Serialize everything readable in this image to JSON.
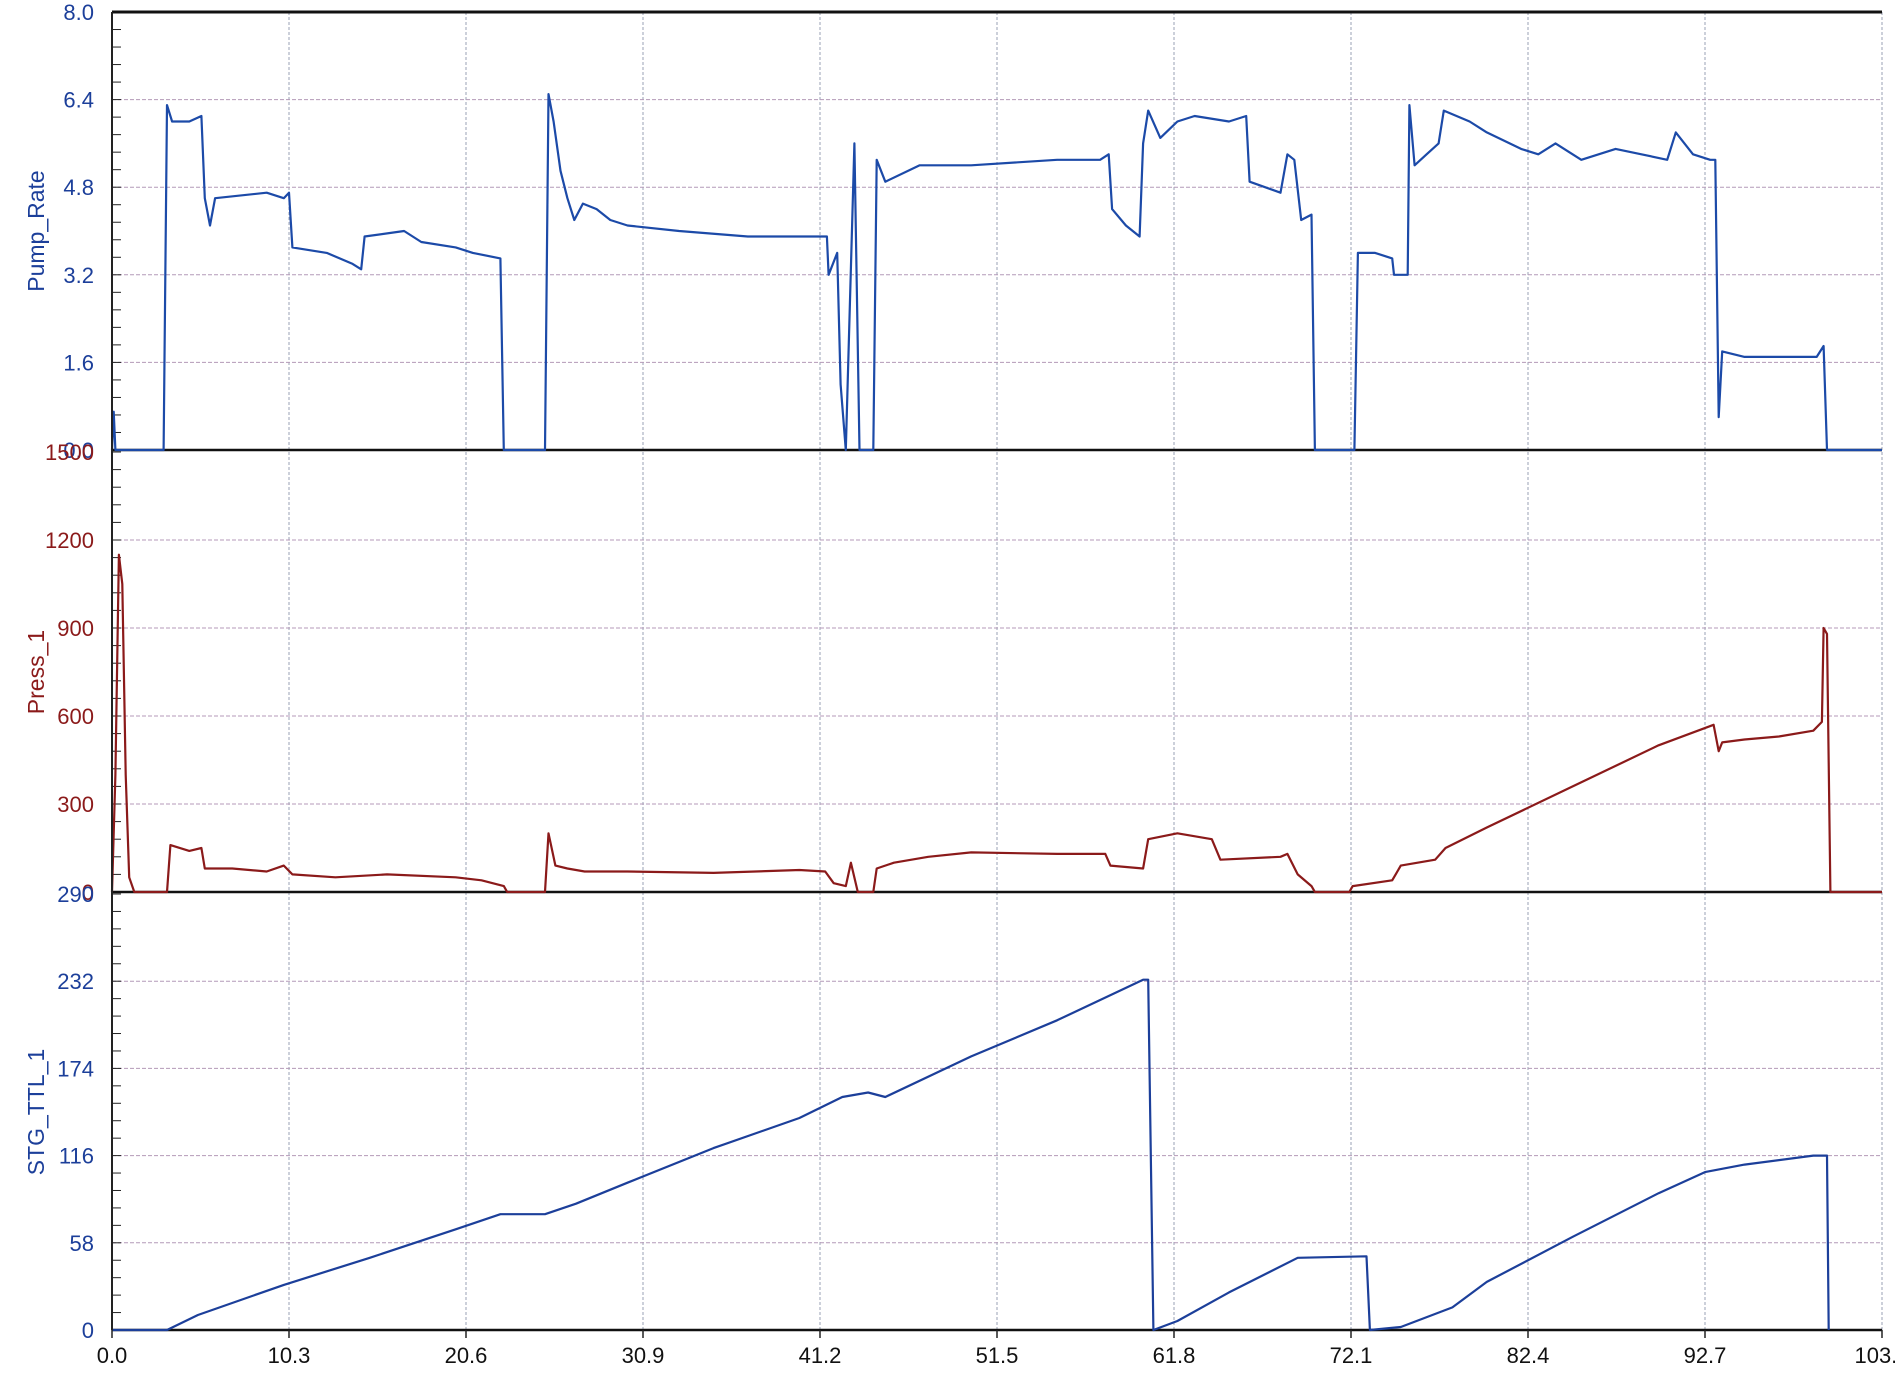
{
  "chart_data": {
    "type": "line",
    "x_axis": {
      "ticks": [
        0.0,
        10.3,
        20.6,
        30.9,
        41.2,
        51.5,
        61.8,
        72.1,
        82.4,
        92.7,
        103.0
      ],
      "tick_labels": [
        "0.0",
        "10.3",
        "20.6",
        "30.9",
        "41.2",
        "51.5",
        "61.8",
        "72.1",
        "82.4",
        "92.7",
        "103.0"
      ],
      "range": [
        0.0,
        103.0
      ]
    },
    "grid": true,
    "panels": [
      {
        "ylabel": "Pump_Rate",
        "color": "#1c4aa8",
        "label_color": "#1c3f9a",
        "ylim": [
          0.0,
          8.0
        ],
        "ticks": [
          0.0,
          1.6,
          3.2,
          4.8,
          6.4,
          8.0
        ],
        "tick_labels": [
          "0.0",
          "1.6",
          "3.2",
          "4.8",
          "6.4",
          "8.0"
        ],
        "points": [
          [
            0.0,
            0.0
          ],
          [
            0.1,
            0.7
          ],
          [
            0.2,
            0.0
          ],
          [
            3.0,
            0.0
          ],
          [
            3.2,
            6.3
          ],
          [
            3.5,
            6.0
          ],
          [
            4.5,
            6.0
          ],
          [
            5.2,
            6.1
          ],
          [
            5.4,
            4.6
          ],
          [
            5.7,
            4.1
          ],
          [
            6.0,
            4.6
          ],
          [
            9.0,
            4.7
          ],
          [
            10.0,
            4.6
          ],
          [
            10.3,
            4.7
          ],
          [
            10.5,
            3.7
          ],
          [
            12.5,
            3.6
          ],
          [
            14.0,
            3.4
          ],
          [
            14.5,
            3.3
          ],
          [
            14.7,
            3.9
          ],
          [
            17.0,
            4.0
          ],
          [
            18.0,
            3.8
          ],
          [
            20.0,
            3.7
          ],
          [
            21.0,
            3.6
          ],
          [
            22.6,
            3.5
          ],
          [
            22.8,
            0.0
          ],
          [
            25.2,
            0.0
          ],
          [
            25.4,
            6.5
          ],
          [
            25.7,
            6.0
          ],
          [
            26.1,
            5.1
          ],
          [
            26.5,
            4.6
          ],
          [
            26.9,
            4.2
          ],
          [
            27.4,
            4.5
          ],
          [
            28.2,
            4.4
          ],
          [
            29.0,
            4.2
          ],
          [
            30.0,
            4.1
          ],
          [
            33.0,
            4.0
          ],
          [
            37.0,
            3.9
          ],
          [
            40.0,
            3.9
          ],
          [
            41.6,
            3.9
          ],
          [
            41.7,
            3.2
          ],
          [
            42.2,
            3.6
          ],
          [
            42.4,
            1.2
          ],
          [
            42.7,
            0.0
          ],
          [
            43.2,
            5.6
          ],
          [
            43.5,
            0.0
          ],
          [
            44.3,
            0.0
          ],
          [
            44.5,
            5.3
          ],
          [
            45.0,
            4.9
          ],
          [
            47.0,
            5.2
          ],
          [
            50.0,
            5.2
          ],
          [
            55.0,
            5.3
          ],
          [
            57.5,
            5.3
          ],
          [
            58.0,
            5.4
          ],
          [
            58.2,
            4.4
          ],
          [
            59.0,
            4.1
          ],
          [
            59.8,
            3.9
          ],
          [
            60.0,
            5.6
          ],
          [
            60.3,
            6.2
          ],
          [
            61.0,
            5.7
          ],
          [
            62.0,
            6.0
          ],
          [
            63.0,
            6.1
          ],
          [
            65.0,
            6.0
          ],
          [
            66.0,
            6.1
          ],
          [
            66.2,
            4.9
          ],
          [
            68.0,
            4.7
          ],
          [
            68.4,
            5.4
          ],
          [
            68.8,
            5.3
          ],
          [
            69.2,
            4.2
          ],
          [
            69.8,
            4.3
          ],
          [
            70.0,
            0.0
          ],
          [
            72.3,
            0.0
          ],
          [
            72.5,
            3.6
          ],
          [
            73.5,
            3.6
          ],
          [
            74.5,
            3.5
          ],
          [
            74.6,
            3.2
          ],
          [
            75.4,
            3.2
          ],
          [
            75.5,
            6.3
          ],
          [
            75.8,
            5.2
          ],
          [
            76.5,
            5.4
          ],
          [
            77.2,
            5.6
          ],
          [
            77.5,
            6.2
          ],
          [
            79.0,
            6.0
          ],
          [
            80.0,
            5.8
          ],
          [
            82.0,
            5.5
          ],
          [
            83.0,
            5.4
          ],
          [
            84.0,
            5.6
          ],
          [
            85.5,
            5.3
          ],
          [
            87.5,
            5.5
          ],
          [
            89.0,
            5.4
          ],
          [
            90.5,
            5.3
          ],
          [
            91.0,
            5.8
          ],
          [
            92.0,
            5.4
          ],
          [
            93.0,
            5.3
          ],
          [
            93.3,
            5.3
          ],
          [
            93.5,
            0.6
          ],
          [
            93.7,
            1.8
          ],
          [
            95.0,
            1.7
          ],
          [
            98.0,
            1.7
          ],
          [
            99.2,
            1.7
          ],
          [
            99.6,
            1.9
          ],
          [
            99.8,
            0.0
          ],
          [
            103.0,
            0.0
          ]
        ]
      },
      {
        "ylabel": "Press_1",
        "color": "#8b1a1a",
        "label_color": "#8b1a1a",
        "ylim": [
          0,
          1500
        ],
        "ticks": [
          0,
          300,
          600,
          900,
          1200,
          1500
        ],
        "tick_labels": [
          "0",
          "300",
          "600",
          "900",
          "1200",
          "1500"
        ],
        "points": [
          [
            0.0,
            0
          ],
          [
            0.2,
            400
          ],
          [
            0.4,
            1150
          ],
          [
            0.6,
            1050
          ],
          [
            0.8,
            400
          ],
          [
            1.0,
            50
          ],
          [
            1.3,
            0
          ],
          [
            3.2,
            0
          ],
          [
            3.4,
            160
          ],
          [
            4.5,
            140
          ],
          [
            5.2,
            150
          ],
          [
            5.4,
            80
          ],
          [
            7.0,
            80
          ],
          [
            9.0,
            70
          ],
          [
            10.0,
            90
          ],
          [
            10.5,
            60
          ],
          [
            13.0,
            50
          ],
          [
            16.0,
            60
          ],
          [
            20.0,
            50
          ],
          [
            21.5,
            40
          ],
          [
            22.8,
            20
          ],
          [
            23.0,
            0
          ],
          [
            25.2,
            0
          ],
          [
            25.4,
            200
          ],
          [
            25.8,
            90
          ],
          [
            26.5,
            80
          ],
          [
            27.5,
            70
          ],
          [
            30.0,
            70
          ],
          [
            35.0,
            65
          ],
          [
            40.0,
            75
          ],
          [
            41.5,
            70
          ],
          [
            42.0,
            30
          ],
          [
            42.7,
            20
          ],
          [
            43.0,
            100
          ],
          [
            43.4,
            0
          ],
          [
            44.3,
            0
          ],
          [
            44.5,
            80
          ],
          [
            45.5,
            100
          ],
          [
            47.5,
            120
          ],
          [
            50.0,
            135
          ],
          [
            55.0,
            130
          ],
          [
            57.8,
            130
          ],
          [
            58.1,
            90
          ],
          [
            60.0,
            80
          ],
          [
            60.3,
            180
          ],
          [
            62.0,
            200
          ],
          [
            64.0,
            180
          ],
          [
            64.5,
            110
          ],
          [
            68.0,
            120
          ],
          [
            68.4,
            130
          ],
          [
            69.0,
            60
          ],
          [
            69.8,
            20
          ],
          [
            70.0,
            0
          ],
          [
            72.0,
            0
          ],
          [
            72.2,
            20
          ],
          [
            74.5,
            40
          ],
          [
            75.0,
            90
          ],
          [
            77.0,
            110
          ],
          [
            77.6,
            150
          ],
          [
            80.0,
            220
          ],
          [
            85.0,
            360
          ],
          [
            90.0,
            500
          ],
          [
            93.2,
            570
          ],
          [
            93.5,
            480
          ],
          [
            93.7,
            510
          ],
          [
            95.0,
            520
          ],
          [
            97.0,
            530
          ],
          [
            99.0,
            550
          ],
          [
            99.5,
            580
          ],
          [
            99.6,
            900
          ],
          [
            99.8,
            880
          ],
          [
            100.0,
            0
          ],
          [
            103.0,
            0
          ]
        ]
      },
      {
        "ylabel": "STG_TTL_1",
        "color": "#1c3f9a",
        "label_color": "#1c3f9a",
        "ylim": [
          0,
          290
        ],
        "ticks": [
          0,
          58,
          116,
          174,
          232,
          290
        ],
        "tick_labels": [
          "0",
          "58",
          "116",
          "174",
          "232",
          "290"
        ],
        "points": [
          [
            0.0,
            0
          ],
          [
            3.2,
            0
          ],
          [
            5.0,
            10
          ],
          [
            10.0,
            30
          ],
          [
            15.0,
            48
          ],
          [
            20.0,
            67
          ],
          [
            22.6,
            77
          ],
          [
            25.2,
            77
          ],
          [
            27.0,
            84
          ],
          [
            30.0,
            98
          ],
          [
            35.0,
            121
          ],
          [
            40.0,
            141
          ],
          [
            42.5,
            155
          ],
          [
            44.0,
            158
          ],
          [
            45.0,
            155
          ],
          [
            50.0,
            182
          ],
          [
            55.0,
            206
          ],
          [
            60.0,
            233
          ],
          [
            60.3,
            233
          ],
          [
            60.6,
            0
          ],
          [
            62.0,
            6
          ],
          [
            65.0,
            25
          ],
          [
            69.0,
            48
          ],
          [
            73.0,
            49
          ],
          [
            73.2,
            0
          ],
          [
            75.0,
            2
          ],
          [
            78.0,
            15
          ],
          [
            80.0,
            32
          ],
          [
            85.0,
            62
          ],
          [
            90.0,
            91
          ],
          [
            92.7,
            105
          ],
          [
            95.0,
            110
          ],
          [
            99.0,
            116
          ],
          [
            99.8,
            116
          ],
          [
            99.9,
            0
          ]
        ]
      }
    ]
  }
}
